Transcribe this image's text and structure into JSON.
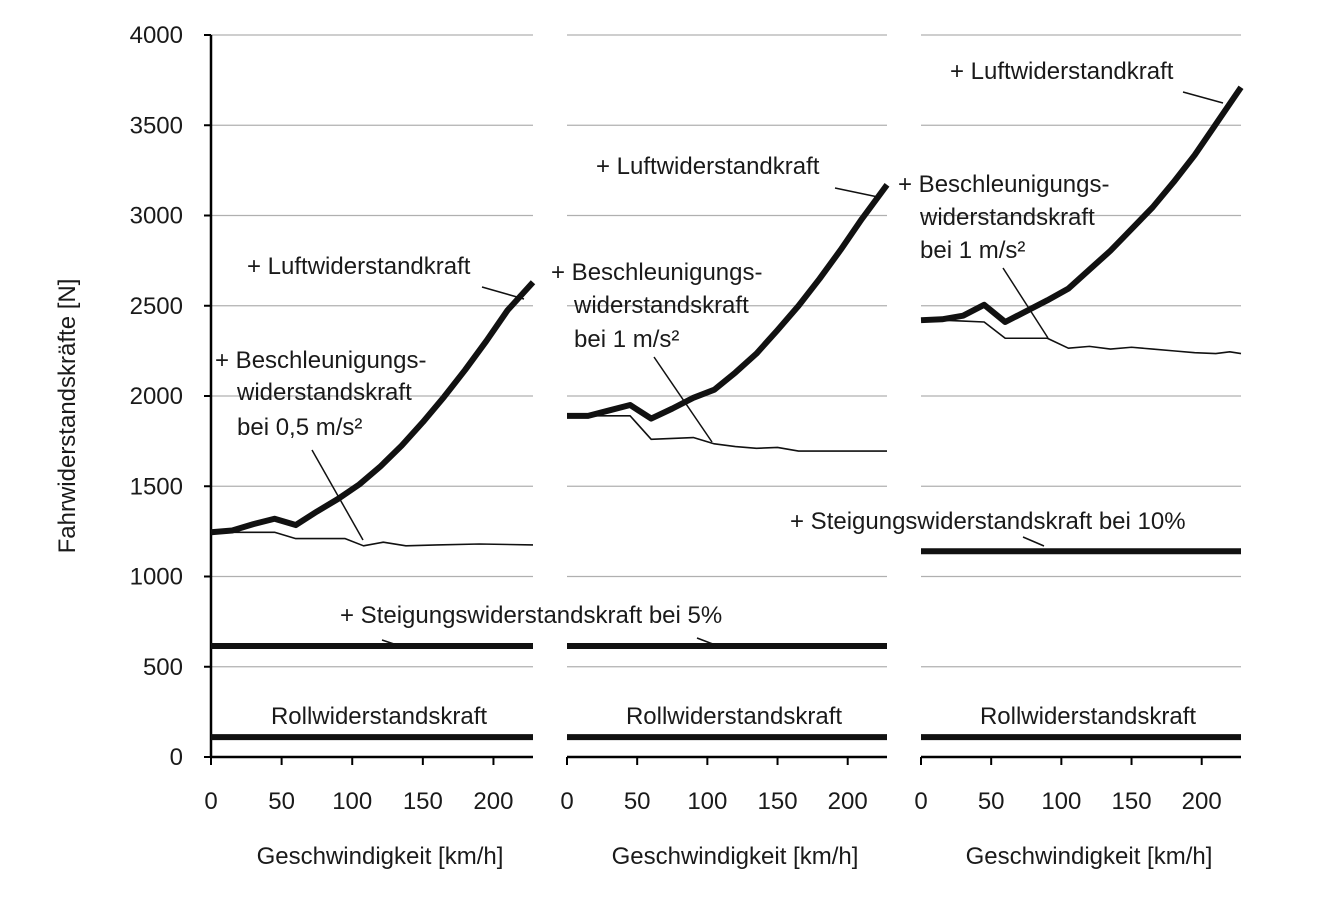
{
  "chart_data": {
    "type": "line",
    "ylabel": "Fahrwiderstandskräfte [N]",
    "yticks": [
      0,
      500,
      1000,
      1500,
      2000,
      2500,
      3000,
      3500,
      4000
    ],
    "ylim": [
      0,
      4000
    ],
    "grid": true,
    "panels": [
      {
        "xlabel": "Geschwindigkeit [km/h]",
        "xticks": [
          0,
          50,
          100,
          150,
          200
        ],
        "xlim": [
          0,
          228
        ],
        "rollwiderstand": {
          "label": "Rollwiderstandskraft",
          "value": 110
        },
        "steigung": {
          "label": "+ Steigungswiderstandskraft bei 5%",
          "value": 615
        },
        "beschleunigung": {
          "label": [
            "+ Beschleunigungs-",
            "widerstandskraft",
            "bei 0,5 m/s²"
          ],
          "x": [
            0,
            15,
            25,
            45,
            60,
            80,
            95,
            108,
            122,
            138,
            160,
            190,
            228
          ],
          "y": [
            1245,
            1245,
            1245,
            1245,
            1210,
            1210,
            1210,
            1170,
            1190,
            1170,
            1175,
            1180,
            1175
          ]
        },
        "luftwiderstand": {
          "label": "+ Luftwiderstandkraft",
          "x": [
            0,
            15,
            30,
            45,
            60,
            75,
            90,
            105,
            120,
            135,
            150,
            165,
            180,
            195,
            210,
            228
          ],
          "y": [
            1245,
            1255,
            1290,
            1320,
            1285,
            1360,
            1430,
            1510,
            1610,
            1725,
            1855,
            1995,
            2145,
            2305,
            2475,
            2630
          ]
        }
      },
      {
        "xlabel": "Geschwindigkeit [km/h]",
        "xticks": [
          0,
          50,
          100,
          150,
          200
        ],
        "xlim": [
          0,
          228
        ],
        "rollwiderstand": {
          "label": "Rollwiderstandskraft",
          "value": 110
        },
        "steigung": {
          "label": "",
          "value": 615
        },
        "beschleunigung": {
          "label": [
            "+ Beschleunigungs-",
            "widerstandskraft",
            "bei 1 m/s²"
          ],
          "x": [
            0,
            15,
            30,
            45,
            60,
            75,
            90,
            105,
            120,
            135,
            150,
            165,
            180,
            195,
            210,
            228
          ],
          "y": [
            1890,
            1890,
            1890,
            1890,
            1760,
            1765,
            1770,
            1735,
            1720,
            1710,
            1715,
            1695,
            1695,
            1695,
            1695,
            1695
          ]
        },
        "luftwiderstand": {
          "label": "+ Luftwiderstandkraft",
          "x": [
            0,
            15,
            30,
            45,
            60,
            75,
            90,
            105,
            120,
            135,
            150,
            165,
            180,
            195,
            210,
            228
          ],
          "y": [
            1890,
            1890,
            1920,
            1950,
            1875,
            1930,
            1990,
            2035,
            2130,
            2235,
            2365,
            2500,
            2650,
            2810,
            2980,
            3170
          ]
        }
      },
      {
        "xlabel": "Geschwindigkeit [km/h]",
        "xticks": [
          0,
          50,
          100,
          150,
          200
        ],
        "xlim": [
          0,
          228
        ],
        "rollwiderstand": {
          "label": "Rollwiderstandskraft",
          "value": 110
        },
        "steigung": {
          "label": "+ Steigungswiderstandskraft bei 10%",
          "value": 1140
        },
        "beschleunigung": {
          "label": [
            "+ Beschleunigungs-",
            "widerstandskraft",
            "bei 1 m/s²"
          ],
          "x": [
            0,
            15,
            30,
            45,
            60,
            75,
            90,
            105,
            120,
            135,
            150,
            165,
            180,
            195,
            210,
            220,
            228
          ],
          "y": [
            2420,
            2420,
            2415,
            2410,
            2320,
            2320,
            2320,
            2265,
            2275,
            2260,
            2270,
            2260,
            2250,
            2240,
            2235,
            2245,
            2235
          ]
        },
        "luftwiderstand": {
          "label": "+ Luftwiderstandkraft",
          "x": [
            0,
            15,
            30,
            45,
            60,
            75,
            90,
            105,
            120,
            135,
            150,
            165,
            180,
            195,
            210,
            228
          ],
          "y": [
            2420,
            2425,
            2445,
            2505,
            2410,
            2470,
            2530,
            2595,
            2700,
            2805,
            2925,
            3045,
            3185,
            3335,
            3505,
            3710
          ]
        }
      }
    ]
  }
}
